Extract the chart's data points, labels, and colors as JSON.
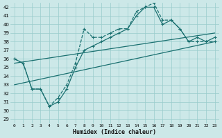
{
  "xlabel": "Humidex (Indice chaleur)",
  "xlim": [
    -0.5,
    23.5
  ],
  "ylim": [
    28.5,
    42.5
  ],
  "yticks": [
    29,
    30,
    31,
    32,
    33,
    34,
    35,
    36,
    37,
    38,
    39,
    40,
    41,
    42
  ],
  "xticks": [
    0,
    1,
    2,
    3,
    4,
    5,
    6,
    7,
    8,
    9,
    10,
    11,
    12,
    13,
    14,
    15,
    16,
    17,
    18,
    19,
    20,
    21,
    22,
    23
  ],
  "bg_color": "#cce8e8",
  "grid_color": "#99cccc",
  "line_color": "#1a7070",
  "curve1_x": [
    0,
    1,
    2,
    3,
    4,
    5,
    6,
    7,
    8,
    9,
    10,
    11,
    12,
    13,
    14,
    15,
    16,
    17,
    18,
    19,
    20,
    21,
    22,
    23
  ],
  "curve1_y": [
    36.0,
    35.5,
    32.5,
    32.5,
    30.5,
    31.5,
    33.0,
    35.5,
    39.5,
    38.5,
    38.5,
    39.0,
    39.5,
    39.5,
    41.5,
    42.0,
    42.5,
    40.5,
    40.5,
    39.5,
    38.0,
    38.0,
    38.0,
    38.0
  ],
  "curve2_x": [
    0,
    1,
    2,
    3,
    4,
    5,
    6,
    7,
    8,
    9,
    10,
    11,
    12,
    13,
    14,
    15,
    16,
    17,
    18,
    19,
    20,
    21,
    22,
    23
  ],
  "curve2_y": [
    36.0,
    35.5,
    32.5,
    32.5,
    30.5,
    31.0,
    32.5,
    35.0,
    37.0,
    37.5,
    38.0,
    38.5,
    39.0,
    39.5,
    41.0,
    42.0,
    42.0,
    40.0,
    40.5,
    39.5,
    38.0,
    38.5,
    38.0,
    38.5
  ],
  "line3_x": [
    0,
    23
  ],
  "line3_y": [
    35.5,
    39.0
  ],
  "line4_x": [
    0,
    23
  ],
  "line4_y": [
    33.0,
    38.0
  ]
}
